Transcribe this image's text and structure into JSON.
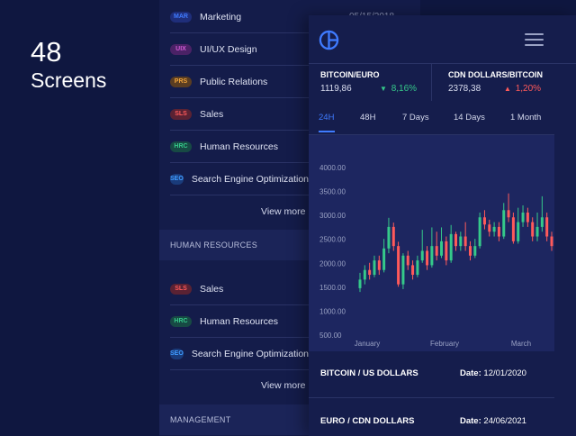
{
  "hero": {
    "number": "48",
    "label": "Screens"
  },
  "back_list": {
    "top_date": "05/15/2018",
    "items_group1": [
      {
        "badge": "MAR",
        "label": "Marketing",
        "color": "#3f7bff",
        "bg": "#1f2e7a"
      },
      {
        "badge": "UIX",
        "label": "UI/UX Design",
        "color": "#d25bd6",
        "bg": "#4a2266"
      },
      {
        "badge": "PRS",
        "label": "Public Relations",
        "color": "#f0a33a",
        "bg": "#5a3d22"
      },
      {
        "badge": "SLS",
        "label": "Sales",
        "color": "#ff5a5a",
        "bg": "#5a2233"
      },
      {
        "badge": "HRC",
        "label": "Human Resources",
        "color": "#35c98a",
        "bg": "#174a44"
      },
      {
        "badge": "SEO",
        "label": "Search Engine Optimization",
        "color": "#3f9bff",
        "bg": "#1a3b7a"
      }
    ],
    "view_more_1": "View more",
    "section_1": "HUMAN RESOURCES",
    "items_group2": [
      {
        "badge": "SLS",
        "label": "Sales",
        "color": "#ff5a5a",
        "bg": "#5a2233"
      },
      {
        "badge": "HRC",
        "label": "Human Resources",
        "color": "#35c98a",
        "bg": "#174a44"
      },
      {
        "badge": "SEO",
        "label": "Search Engine Optimization",
        "color": "#3f9bff",
        "bg": "#1a3b7a"
      }
    ],
    "view_more_2": "View more",
    "section_2": "MANAGEMENT"
  },
  "phone": {
    "tickers": [
      {
        "pair": "BITCOIN/EURO",
        "price": "1119,86",
        "change": "8,16%",
        "direction": "down",
        "color": "#35c98a"
      },
      {
        "pair": "CDN DOLLARS/BITCOIN",
        "price": "2378,38",
        "change": "1,20%",
        "direction": "up",
        "color": "#ff5a5a"
      }
    ],
    "tabs": [
      "24H",
      "48H",
      "7 Days",
      "14 Days",
      "1 Month"
    ],
    "active_tab": "24H",
    "rows": [
      {
        "title": "BITCOIN / US DOLLARS",
        "date_label": "Date:",
        "date": "12/01/2020"
      },
      {
        "title": "EURO / CDN DOLLARS",
        "date_label": "Date:",
        "date": "24/06/2021"
      }
    ]
  },
  "chart_data": {
    "type": "candlestick",
    "y_ticks": [
      "4000.00",
      "3500.00",
      "3000.00",
      "2500.00",
      "2000.00",
      "1500.00",
      "1000.00",
      "500.00"
    ],
    "x_ticks": [
      "January",
      "February",
      "March"
    ],
    "ylim": [
      500,
      4000
    ],
    "up_color": "#35c98a",
    "down_color": "#ff5a5a",
    "candles": [
      {
        "o": 1480,
        "c": 1660,
        "h": 1800,
        "l": 1400
      },
      {
        "o": 1660,
        "c": 1860,
        "h": 1960,
        "l": 1560
      },
      {
        "o": 1860,
        "c": 1760,
        "h": 2010,
        "l": 1660
      },
      {
        "o": 1760,
        "c": 2060,
        "h": 2160,
        "l": 1710
      },
      {
        "o": 2060,
        "c": 1860,
        "h": 2160,
        "l": 1760
      },
      {
        "o": 1860,
        "c": 2310,
        "h": 2510,
        "l": 1810
      },
      {
        "o": 2310,
        "c": 2760,
        "h": 2950,
        "l": 2210
      },
      {
        "o": 2760,
        "c": 2360,
        "h": 2850,
        "l": 2260
      },
      {
        "o": 2360,
        "c": 1560,
        "h": 2450,
        "l": 1510
      },
      {
        "o": 1560,
        "c": 2160,
        "h": 2210,
        "l": 1460
      },
      {
        "o": 2160,
        "c": 1960,
        "h": 2260,
        "l": 1860
      },
      {
        "o": 1960,
        "c": 1760,
        "h": 2060,
        "l": 1660
      },
      {
        "o": 1760,
        "c": 2060,
        "h": 2160,
        "l": 1710
      },
      {
        "o": 2060,
        "c": 2260,
        "h": 2700,
        "l": 2010
      },
      {
        "o": 2260,
        "c": 1960,
        "h": 2360,
        "l": 1860
      },
      {
        "o": 1960,
        "c": 2360,
        "h": 2750,
        "l": 1910
      },
      {
        "o": 2360,
        "c": 2160,
        "h": 2660,
        "l": 2060
      },
      {
        "o": 2160,
        "c": 2460,
        "h": 2750,
        "l": 2110
      },
      {
        "o": 2460,
        "c": 2060,
        "h": 2560,
        "l": 1960
      },
      {
        "o": 2060,
        "c": 2610,
        "h": 2800,
        "l": 2010
      },
      {
        "o": 2610,
        "c": 2360,
        "h": 2660,
        "l": 2260
      },
      {
        "o": 2360,
        "c": 2560,
        "h": 2660,
        "l": 2260
      },
      {
        "o": 2560,
        "c": 2360,
        "h": 2860,
        "l": 2260
      },
      {
        "o": 2360,
        "c": 2160,
        "h": 2460,
        "l": 2060
      },
      {
        "o": 2160,
        "c": 2360,
        "h": 2510,
        "l": 2110
      },
      {
        "o": 2360,
        "c": 2960,
        "h": 3060,
        "l": 2310
      },
      {
        "o": 2960,
        "c": 2810,
        "h": 3110,
        "l": 2710
      },
      {
        "o": 2810,
        "c": 2660,
        "h": 2910,
        "l": 2560
      },
      {
        "o": 2660,
        "c": 2760,
        "h": 2860,
        "l": 2560
      },
      {
        "o": 2760,
        "c": 2560,
        "h": 2860,
        "l": 2460
      },
      {
        "o": 2560,
        "c": 3110,
        "h": 3260,
        "l": 2510
      },
      {
        "o": 3110,
        "c": 2960,
        "h": 3460,
        "l": 2860
      },
      {
        "o": 2960,
        "c": 2460,
        "h": 3060,
        "l": 2410
      },
      {
        "o": 2460,
        "c": 2860,
        "h": 3160,
        "l": 2410
      },
      {
        "o": 2860,
        "c": 3060,
        "h": 3210,
        "l": 2760
      },
      {
        "o": 3060,
        "c": 2860,
        "h": 3160,
        "l": 2760
      },
      {
        "o": 2860,
        "c": 2560,
        "h": 2960,
        "l": 2460
      },
      {
        "o": 2560,
        "c": 2760,
        "h": 3060,
        "l": 2460
      },
      {
        "o": 2760,
        "c": 2960,
        "h": 3400,
        "l": 2660
      },
      {
        "o": 2960,
        "c": 2560,
        "h": 3060,
        "l": 2460
      },
      {
        "o": 2560,
        "c": 2360,
        "h": 2660,
        "l": 2260
      }
    ]
  }
}
